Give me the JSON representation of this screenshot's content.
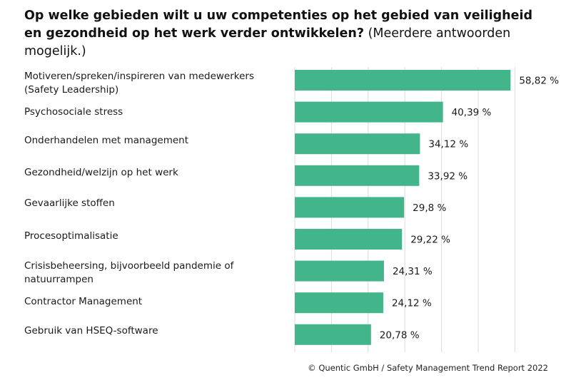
{
  "chart_data": {
    "type": "bar",
    "orientation": "horizontal",
    "title_bold": "Op welke gebieden wilt u uw competenties op het gebied van veiligheid en gezondheid op het werk verder ontwikkelen?",
    "title_normal": "(Meerdere antwoorden mogelijk.)",
    "categories": [
      "Motiveren/spreken/inspireren van medewerkers (Safety Leadership)",
      "Psychosociale stress",
      "Onderhandelen met management",
      "Gezondheid/welzijn op het werk",
      "Gevaarlijke stoffen",
      "Procesoptimalisatie",
      "Crisisbeheersing, bijvoorbeeld pandemie of natuurrampen",
      "Contractor Management",
      "Gebruik van HSEQ-software"
    ],
    "values": [
      58.82,
      40.39,
      34.12,
      33.92,
      29.8,
      29.22,
      24.31,
      24.12,
      20.78
    ],
    "value_labels": [
      "58,82 %",
      "40,39 %",
      "34,12 %",
      "33,92 %",
      "29,8 %",
      "29,22 %",
      "24,31 %",
      "24,12 %",
      "20,78 %"
    ],
    "xlim": [
      0,
      60
    ],
    "grid": true,
    "bar_color": "#42b68a",
    "grid_color": "#dcdcdc"
  },
  "footer": "© Quentic GmbH / Safety Management Trend Report 2022"
}
